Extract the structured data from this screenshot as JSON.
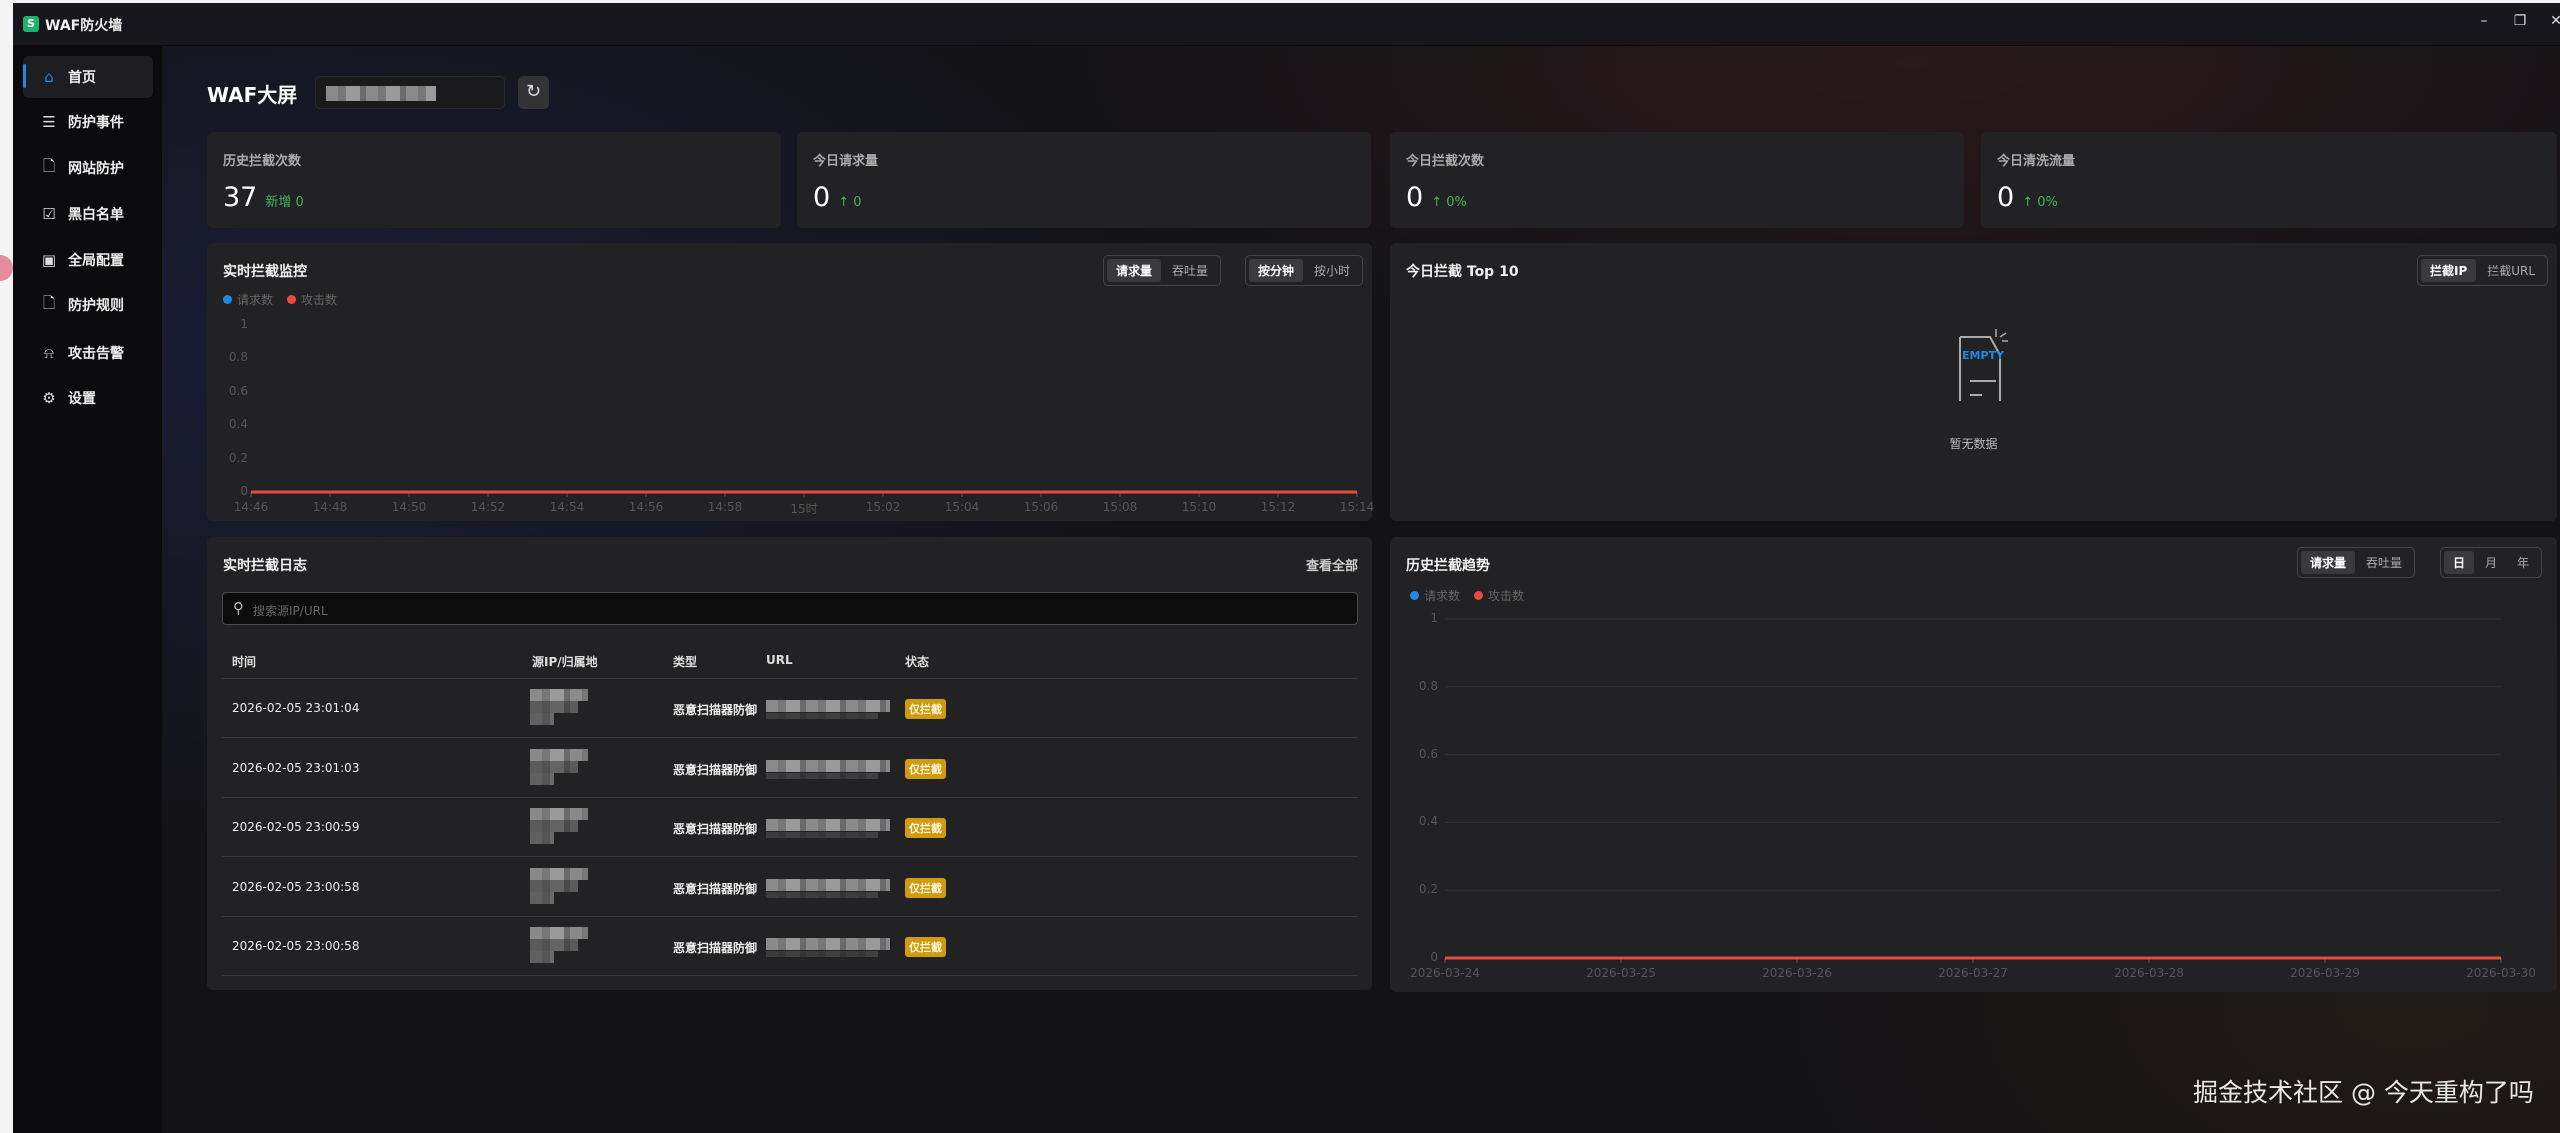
{
  "app": {
    "title": "WAF防火墙",
    "logo_glyph": "S"
  },
  "window_controls": {
    "minimize": "–",
    "maximize": "❐",
    "close": "✕"
  },
  "sidebar": {
    "items": [
      {
        "label": "首页",
        "icon": "home-icon",
        "active": true
      },
      {
        "label": "防护事件",
        "icon": "list-icon"
      },
      {
        "label": "网站防护",
        "icon": "file-shield-icon"
      },
      {
        "label": "黑白名单",
        "icon": "checklist-icon"
      },
      {
        "label": "全局配置",
        "icon": "window-gear-icon"
      },
      {
        "label": "防护规则",
        "icon": "file-rule-icon"
      },
      {
        "label": "攻击告警",
        "icon": "alarm-icon"
      },
      {
        "label": "设置",
        "icon": "gear-icon"
      }
    ]
  },
  "header": {
    "title": "WAF大屏",
    "refresh_icon": "refresh-icon"
  },
  "stats": [
    {
      "label": "历史拦截次数",
      "value": "37",
      "delta": "新增 0"
    },
    {
      "label": "今日请求量",
      "value": "0",
      "delta": "↑ 0"
    },
    {
      "label": "今日拦截次数",
      "value": "0",
      "delta": "↑ 0%"
    },
    {
      "label": "今日清洗流量",
      "value": "0",
      "delta": "↑ 0%"
    }
  ],
  "realtime": {
    "title": "实时拦截监控",
    "metric_tabs": [
      "请求量",
      "吞吐量"
    ],
    "metric_active": 0,
    "time_tabs": [
      "按分钟",
      "按小时"
    ],
    "time_active": 0
  },
  "top10": {
    "title": "今日拦截 Top 10",
    "tabs": [
      "拦截IP",
      "拦截URL"
    ],
    "active": 0,
    "empty_label": "EMPTY",
    "empty_text": "暂无数据"
  },
  "log": {
    "title": "实时拦截日志",
    "view_all": "查看全部",
    "search_placeholder": "搜索源IP/URL",
    "columns": [
      "时间",
      "源IP/归属地",
      "类型",
      "URL",
      "状态"
    ],
    "rows": [
      {
        "time": "2026-02-05 23:01:04",
        "type": "恶意扫描器防御",
        "status": "仅拦截"
      },
      {
        "time": "2026-02-05 23:01:03",
        "type": "恶意扫描器防御",
        "status": "仅拦截"
      },
      {
        "time": "2026-02-05 23:00:59",
        "type": "恶意扫描器防御",
        "status": "仅拦截"
      },
      {
        "time": "2026-02-05 23:00:58",
        "type": "恶意扫描器防御",
        "status": "仅拦截"
      },
      {
        "time": "2026-02-05 23:00:58",
        "type": "恶意扫描器防御",
        "status": "仅拦截"
      }
    ]
  },
  "history": {
    "title": "历史拦截趋势",
    "metric_tabs": [
      "请求量",
      "吞吐量"
    ],
    "metric_active": 0,
    "range_tabs": [
      "日",
      "月",
      "年"
    ],
    "range_active": 0
  },
  "colors": {
    "request": "#1e88e5",
    "attack": "#e74c3c",
    "accent": "#1e88e5",
    "badge": "#d09a12",
    "positive": "#3cb55a"
  },
  "chart_data": [
    {
      "type": "line",
      "grid": false,
      "legend": "top-left",
      "ylim": [
        0,
        1
      ],
      "yticks": [
        "0",
        "0.2",
        "0.4",
        "0.6",
        "0.8",
        "1"
      ],
      "x": [
        "14:46",
        "14:48",
        "14:50",
        "14:52",
        "14:54",
        "14:56",
        "14:58",
        "15时",
        "15:02",
        "15:04",
        "15:06",
        "15:08",
        "15:10",
        "15:12",
        "15:14"
      ],
      "series": [
        {
          "name": "请求数",
          "color": "#1e88e5",
          "values": [
            0,
            0,
            0,
            0,
            0,
            0,
            0,
            0,
            0,
            0,
            0,
            0,
            0,
            0,
            0
          ]
        },
        {
          "name": "攻击数",
          "color": "#e74c3c",
          "values": [
            0,
            0,
            0,
            0,
            0,
            0,
            0,
            0,
            0,
            0,
            0,
            0,
            0,
            0,
            0
          ]
        }
      ]
    },
    {
      "type": "line",
      "grid": true,
      "legend": "top-left",
      "ylim": [
        0,
        1
      ],
      "yticks": [
        "0",
        "0.2",
        "0.4",
        "0.6",
        "0.8",
        "1"
      ],
      "x": [
        "2026-03-24",
        "2026-03-25",
        "2026-03-26",
        "2026-03-27",
        "2026-03-28",
        "2026-03-29",
        "2026-03-30"
      ],
      "series": [
        {
          "name": "请求数",
          "color": "#1e88e5",
          "values": [
            0,
            0,
            0,
            0,
            0,
            0,
            0
          ]
        },
        {
          "name": "攻击数",
          "color": "#e74c3c",
          "values": [
            0,
            0,
            0,
            0,
            0,
            0,
            0
          ]
        }
      ]
    }
  ],
  "watermark": "掘金技术社区 @ 今天重构了吗"
}
